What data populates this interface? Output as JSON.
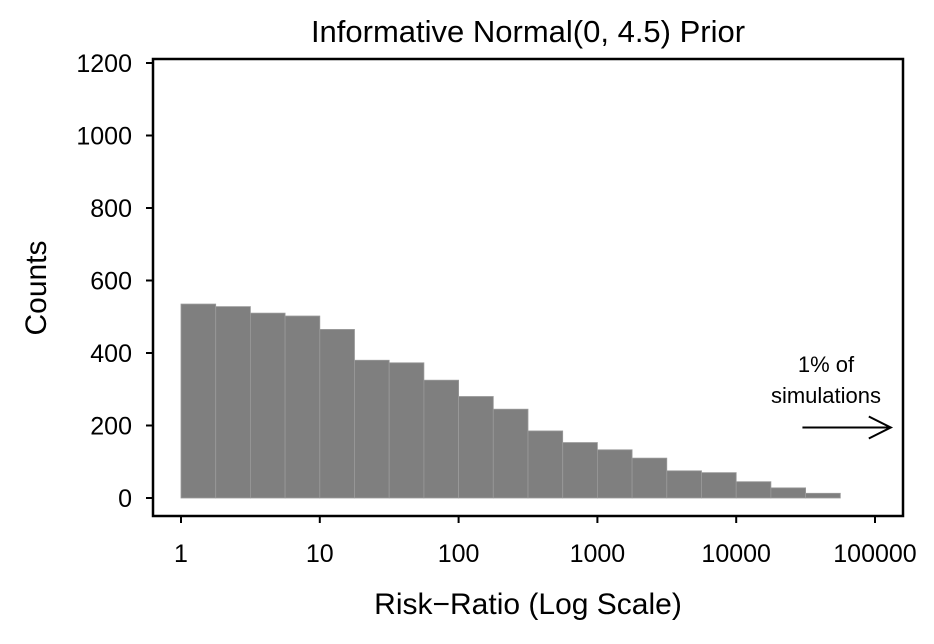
{
  "chart_data": {
    "type": "bar",
    "title": "Informative Normal(0, 4.5) Prior",
    "xlabel": "Risk−Ratio (Log Scale)",
    "ylabel": "Counts",
    "x_scale": "log10",
    "xlim": [
      1,
      100000
    ],
    "ylim": [
      0,
      1200
    ],
    "x_ticks": [
      1,
      10,
      100,
      1000,
      10000,
      100000
    ],
    "x_tick_labels": [
      "1",
      "10",
      "100",
      "1000",
      "10000",
      "100000"
    ],
    "y_ticks": [
      0,
      200,
      400,
      600,
      800,
      1000,
      1200
    ],
    "y_tick_labels": [
      "0",
      "200",
      "400",
      "600",
      "800",
      "1000",
      "1200"
    ],
    "bin_edges": [
      1,
      1.778,
      3.162,
      5.623,
      10,
      17.78,
      31.62,
      56.23,
      100,
      177.8,
      316.2,
      562.3,
      1000,
      1778,
      3162,
      5623,
      10000,
      17780,
      31620,
      56230,
      100000
    ],
    "values": [
      535,
      528,
      510,
      502,
      465,
      380,
      373,
      325,
      280,
      245,
      185,
      153,
      133,
      110,
      75,
      70,
      45,
      28,
      13,
      0
    ],
    "bar_color": "#7f7f7f",
    "grid": false,
    "annotation": {
      "lines": [
        "1% of",
        "simulations"
      ],
      "arrow_from": 30000,
      "arrow_to": 130000,
      "arrow_y": 200
    }
  }
}
